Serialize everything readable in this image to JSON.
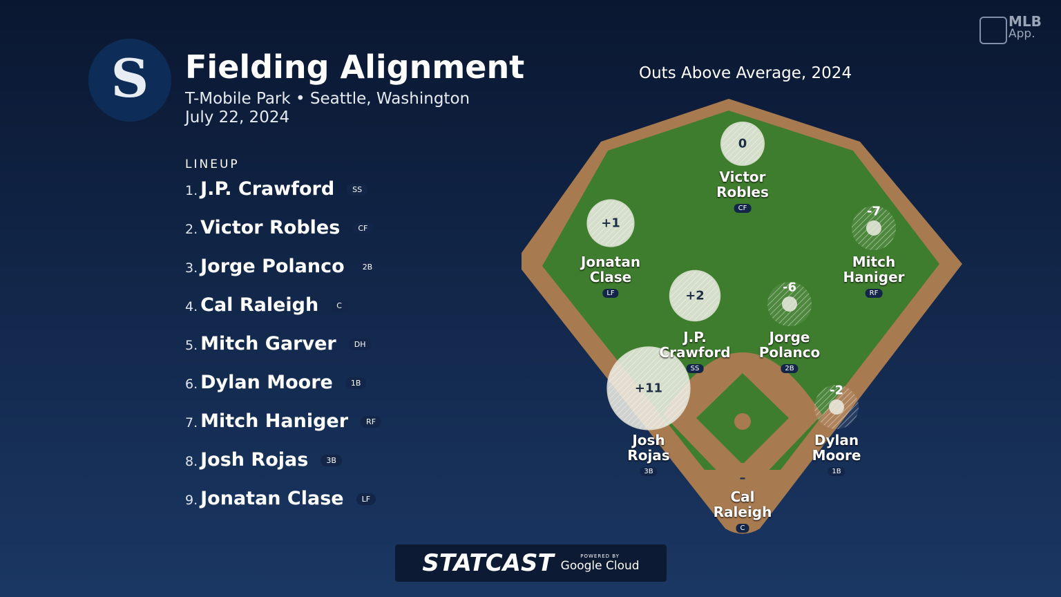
{
  "header": {
    "title": "Fielding Alignment",
    "venue": "T-Mobile Park • Seattle, Washington",
    "date": "July 22, 2024"
  },
  "lineup": {
    "label": "LINEUP",
    "players": [
      {
        "num": "1.",
        "name": "J.P. Crawford",
        "pos": "SS"
      },
      {
        "num": "2.",
        "name": "Victor Robles",
        "pos": "CF"
      },
      {
        "num": "3.",
        "name": "Jorge Polanco",
        "pos": "2B"
      },
      {
        "num": "4.",
        "name": "Cal Raleigh",
        "pos": "C"
      },
      {
        "num": "5.",
        "name": "Mitch Garver",
        "pos": "DH"
      },
      {
        "num": "6.",
        "name": "Dylan Moore",
        "pos": "1B"
      },
      {
        "num": "7.",
        "name": "Mitch Haniger",
        "pos": "RF"
      },
      {
        "num": "8.",
        "name": "Josh Rojas",
        "pos": "3B"
      },
      {
        "num": "9.",
        "name": "Jonatan Clase",
        "pos": "LF"
      }
    ]
  },
  "field": {
    "title": "Outs Above Average, 2024",
    "fielders": [
      {
        "name": "Victor Robles",
        "pos": "CF",
        "oaa": 0,
        "oaa_label": "0"
      },
      {
        "name": "Jonatan Clase",
        "pos": "LF",
        "oaa": 1,
        "oaa_label": "+1"
      },
      {
        "name": "Mitch Haniger",
        "pos": "RF",
        "oaa": -7,
        "oaa_label": "-7"
      },
      {
        "name": "J.P. Crawford",
        "pos": "SS",
        "oaa": 2,
        "oaa_label": "+2"
      },
      {
        "name": "Jorge Polanco",
        "pos": "2B",
        "oaa": -6,
        "oaa_label": "-6"
      },
      {
        "name": "Josh Rojas",
        "pos": "3B",
        "oaa": 11,
        "oaa_label": "+11"
      },
      {
        "name": "Dylan Moore",
        "pos": "1B",
        "oaa": -2,
        "oaa_label": "-2"
      },
      {
        "name": "Cal Raleigh",
        "pos": "C",
        "oaa": null,
        "oaa_label": "–"
      }
    ]
  },
  "branding": {
    "app_mlb": "MLB",
    "app_app": "App.",
    "statcast": "STATCAST",
    "powered": "POWERED BY",
    "cloud": "Google Cloud"
  }
}
